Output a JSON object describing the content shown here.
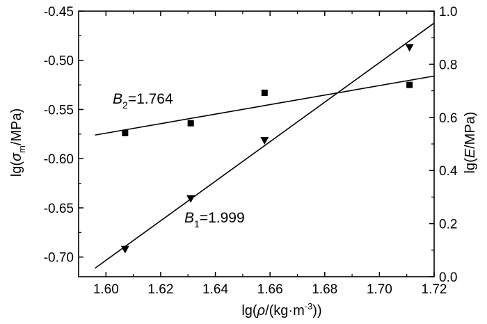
{
  "chart_data": {
    "type": "scatter",
    "x_axis": {
      "label_prefix": "lg(",
      "label_symbol": "ρ",
      "label_units": "/(kg·m",
      "label_superscript": "-3",
      "label_suffix": "))",
      "range": [
        1.59,
        1.72
      ],
      "ticks": [
        "1.60",
        "1.62",
        "1.64",
        "1.66",
        "1.68",
        "1.70",
        "1.72"
      ]
    },
    "y_axis_left": {
      "label_prefix": "lg(",
      "label_symbol": "σ",
      "label_subscript": "m",
      "label_suffix": "/MPa)",
      "range": [
        -0.72,
        -0.45
      ],
      "ticks": [
        "-0.45",
        "-0.50",
        "-0.55",
        "-0.60",
        "-0.65",
        "-0.70"
      ]
    },
    "y_axis_right": {
      "label_prefix": "lg(",
      "label_symbol": "E",
      "label_suffix": "/MPa)",
      "range": [
        0.0,
        1.0
      ],
      "ticks": [
        "0.0",
        "0.2",
        "0.4",
        "0.6",
        "0.8",
        "1.0"
      ]
    },
    "series": [
      {
        "axis": "left",
        "marker": "square",
        "points": [
          {
            "x": 1.607,
            "y": -0.574
          },
          {
            "x": 1.631,
            "y": -0.564
          },
          {
            "x": 1.658,
            "y": -0.533
          },
          {
            "x": 1.711,
            "y": -0.525
          }
        ],
        "fit": {
          "x1": 1.596,
          "y1": -0.576,
          "x2": 1.72,
          "y2": -0.516
        },
        "annotation": {
          "letter": "B",
          "subscript": "2",
          "value": "=1.764"
        }
      },
      {
        "axis": "right",
        "marker": "triangle-down",
        "points": [
          {
            "x": 1.607,
            "y": 0.103
          },
          {
            "x": 1.631,
            "y": 0.294
          },
          {
            "x": 1.658,
            "y": 0.513
          },
          {
            "x": 1.711,
            "y": 0.863
          }
        ],
        "fit": {
          "x1": 1.596,
          "y1": 0.032,
          "x2": 1.72,
          "y2": 0.955
        },
        "annotation": {
          "letter": "B",
          "subscript": "1",
          "value": "=1.999"
        }
      }
    ],
    "grid": false
  }
}
